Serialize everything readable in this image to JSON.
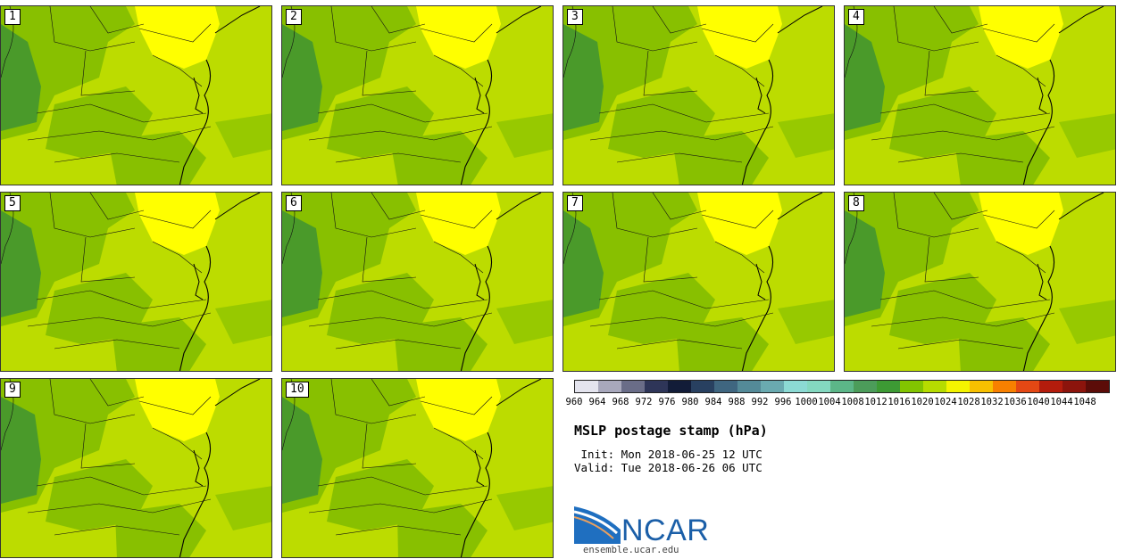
{
  "title": "MSLP postage stamp (hPa)",
  "init": " Init: Mon 2018-06-25 12 UTC",
  "valid": "Valid: Tue 2018-06-26 06 UTC",
  "site": "ensemble.ucar.edu",
  "logo_text": "NCAR",
  "panels": [
    {
      "label": "1"
    },
    {
      "label": "2"
    },
    {
      "label": "3"
    },
    {
      "label": "4"
    },
    {
      "label": "5"
    },
    {
      "label": "6"
    },
    {
      "label": "7"
    },
    {
      "label": "8"
    },
    {
      "label": "9"
    },
    {
      "label": "10"
    }
  ],
  "colorbar": {
    "ticks": [
      "960",
      "964",
      "968",
      "972",
      "976",
      "980",
      "984",
      "988",
      "992",
      "996",
      "1000",
      "1004",
      "1008",
      "1012",
      "1016",
      "1020",
      "1024",
      "1028",
      "1032",
      "1036",
      "1040",
      "1044",
      "1048"
    ],
    "colors": [
      "#e4e4ee",
      "#a8a8bc",
      "#6a6d88",
      "#2e3558",
      "#121c38",
      "#284060",
      "#3f6680",
      "#548a98",
      "#6aaab0",
      "#8cdad4",
      "#84d8c0",
      "#5cb688",
      "#4c9c5a",
      "#3d9a34",
      "#82c400",
      "#b6dc00",
      "#f4f400",
      "#f8c000",
      "#f88000",
      "#e44814",
      "#b41c0c",
      "#8c140c",
      "#5c0c08"
    ]
  },
  "map_colors": {
    "lowest": "#4a9a2a",
    "low": "#88c000",
    "mid": "#bcdc00",
    "high": "#ffff00"
  }
}
